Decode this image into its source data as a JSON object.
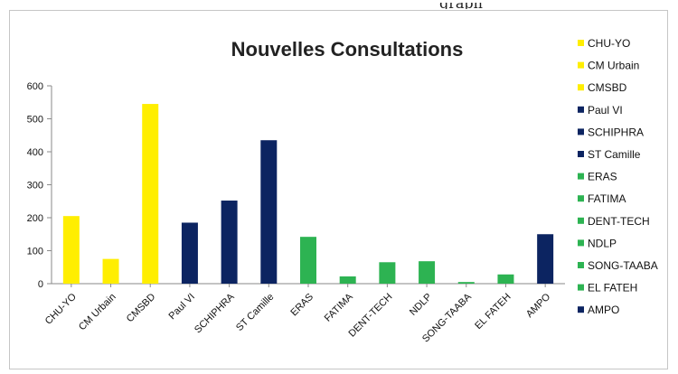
{
  "header_text": "graph",
  "chart_data": {
    "type": "bar",
    "title": "Nouvelles Consultations",
    "xlabel": "",
    "ylabel": "",
    "ylim": [
      0,
      600
    ],
    "yticks": [
      0,
      100,
      200,
      300,
      400,
      500,
      600
    ],
    "grid": false,
    "legend_position": "right",
    "categories": [
      "CHU-YO",
      "CM Urbain",
      "CMSBD",
      "Paul VI",
      "SCHIPHRA",
      "ST Camille",
      "ERAS",
      "FATIMA",
      "DENT-TECH",
      "NDLP",
      "SONG-TAABA",
      "EL FATEH",
      "AMPO"
    ],
    "values": [
      205,
      75,
      545,
      185,
      252,
      435,
      142,
      22,
      65,
      68,
      5,
      28,
      150
    ],
    "colors": [
      "#ffee00",
      "#ffee00",
      "#ffee00",
      "#0c2461",
      "#0c2461",
      "#0c2461",
      "#2db352",
      "#2db352",
      "#2db352",
      "#2db352",
      "#2db352",
      "#2db352",
      "#0c2461"
    ],
    "legend": [
      {
        "label": "CHU-YO",
        "color": "#ffee00"
      },
      {
        "label": "CM Urbain",
        "color": "#ffee00"
      },
      {
        "label": "CMSBD",
        "color": "#ffee00"
      },
      {
        "label": "Paul VI",
        "color": "#0c2461"
      },
      {
        "label": "SCHIPHRA",
        "color": "#0c2461"
      },
      {
        "label": "ST Camille",
        "color": "#0c2461"
      },
      {
        "label": "ERAS",
        "color": "#2db352"
      },
      {
        "label": "FATIMA",
        "color": "#2db352"
      },
      {
        "label": "DENT-TECH",
        "color": "#2db352"
      },
      {
        "label": "NDLP",
        "color": "#2db352"
      },
      {
        "label": "SONG-TAABA",
        "color": "#2db352"
      },
      {
        "label": "EL FATEH",
        "color": "#2db352"
      },
      {
        "label": "AMPO",
        "color": "#0c2461"
      }
    ]
  }
}
